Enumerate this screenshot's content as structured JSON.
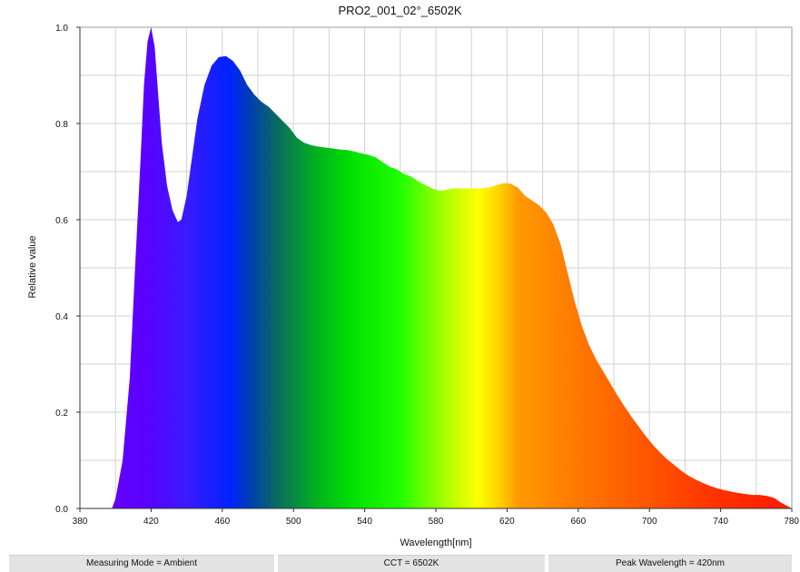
{
  "chart_data": {
    "type": "area",
    "title": "PRO2_001_02°_6502K",
    "xlabel": "Wavelength[nm]",
    "ylabel": "Relative value",
    "xlim": [
      380,
      780
    ],
    "ylim": [
      0,
      1.0
    ],
    "grid": true,
    "x_ticks": [
      380,
      420,
      460,
      500,
      540,
      580,
      620,
      660,
      700,
      740,
      780
    ],
    "x_tick_labels": [
      "380",
      "420",
      "460",
      "500",
      "540",
      "580",
      "620",
      "660",
      "700",
      "740",
      "780"
    ],
    "y_ticks": [
      0,
      0.2,
      0.4,
      0.6,
      0.8,
      1.0
    ],
    "y_tick_labels": [
      "0.0",
      "0.2",
      "0.4",
      "0.6",
      "0.8",
      "1.0"
    ],
    "fill": "visible spectrum colors (violet to red)",
    "series": [
      {
        "x": [
          398,
          400,
          404,
          408,
          411,
          414,
          416,
          418,
          420,
          422,
          424,
          426,
          429,
          432,
          435,
          437,
          440,
          443,
          446,
          450,
          454,
          458,
          462,
          466,
          470,
          474,
          478,
          482,
          486,
          490,
          494,
          498,
          502,
          506,
          510,
          514,
          518,
          522,
          526,
          530,
          534,
          538,
          542,
          546,
          550,
          554,
          558,
          562,
          566,
          570,
          574,
          578,
          582,
          586,
          590,
          594,
          598,
          602,
          606,
          610,
          614,
          618,
          622,
          626,
          630,
          634,
          638,
          642,
          646,
          650,
          654,
          658,
          662,
          666,
          670,
          674,
          678,
          682,
          686,
          690,
          694,
          698,
          702,
          706,
          710,
          714,
          718,
          722,
          726,
          730,
          734,
          738,
          742,
          746,
          750,
          754,
          758,
          762,
          766,
          770,
          774,
          778,
          780
        ],
        "y": [
          0.0,
          0.02,
          0.1,
          0.27,
          0.5,
          0.72,
          0.88,
          0.97,
          1.0,
          0.96,
          0.86,
          0.76,
          0.67,
          0.62,
          0.595,
          0.6,
          0.65,
          0.73,
          0.81,
          0.88,
          0.92,
          0.938,
          0.94,
          0.93,
          0.91,
          0.88,
          0.86,
          0.845,
          0.835,
          0.82,
          0.805,
          0.79,
          0.77,
          0.76,
          0.755,
          0.752,
          0.75,
          0.748,
          0.746,
          0.745,
          0.742,
          0.738,
          0.735,
          0.73,
          0.72,
          0.71,
          0.705,
          0.695,
          0.69,
          0.68,
          0.672,
          0.665,
          0.66,
          0.662,
          0.665,
          0.665,
          0.665,
          0.665,
          0.665,
          0.667,
          0.672,
          0.676,
          0.675,
          0.667,
          0.65,
          0.64,
          0.63,
          0.615,
          0.59,
          0.55,
          0.49,
          0.43,
          0.38,
          0.34,
          0.31,
          0.285,
          0.26,
          0.235,
          0.212,
          0.19,
          0.17,
          0.15,
          0.132,
          0.116,
          0.102,
          0.09,
          0.078,
          0.068,
          0.06,
          0.053,
          0.047,
          0.042,
          0.038,
          0.035,
          0.032,
          0.03,
          0.028,
          0.028,
          0.026,
          0.022,
          0.012,
          0.004,
          0.0
        ]
      }
    ]
  },
  "status_bar": {
    "measuring_mode": "Measuring Mode = Ambient",
    "cct": "CCT = 6502K",
    "peak_wavelength": "Peak Wavelength = 420nm"
  }
}
